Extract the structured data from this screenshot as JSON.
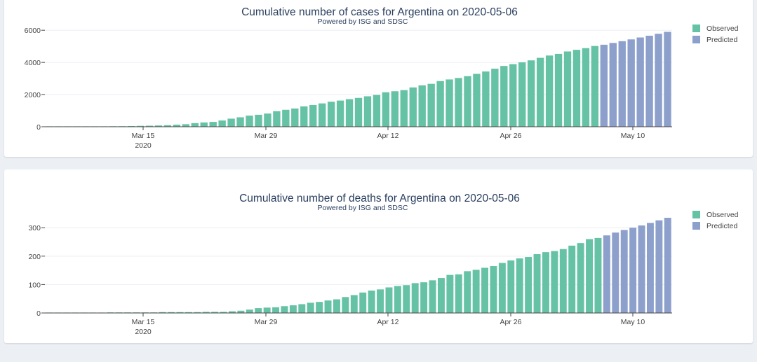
{
  "colors": {
    "observed": "#66c2a5",
    "predicted": "#8da0cb",
    "grid": "#ebeef2",
    "axis": "#444444"
  },
  "chart_data": [
    {
      "type": "bar",
      "title": "Cumulative number of cases for Argentina on 2020-05-06",
      "subtitle": "Powered by ISG and SDSC",
      "x_ticks": [
        "Mar 15",
        "Mar 29",
        "Apr 12",
        "Apr 26",
        "May 10"
      ],
      "x_tick_year": "2020",
      "y_ticks": [
        "0",
        "2000",
        "4000",
        "6000"
      ],
      "ylim": [
        0,
        6400
      ],
      "legend": [
        "Observed",
        "Predicted"
      ],
      "legend_position": "top-right",
      "series": [
        {
          "name": "Observed",
          "values": [
            1,
            2,
            8,
            12,
            17,
            19,
            21,
            31,
            34,
            45,
            56,
            65,
            79,
            97,
            128,
            158,
            225,
            266,
            301,
            387,
            502,
            589,
            690,
            745,
            820,
            966,
            1054,
            1133,
            1265,
            1353,
            1451,
            1554,
            1628,
            1715,
            1795,
            1894,
            1975,
            2142,
            2208,
            2277,
            2443,
            2571,
            2669,
            2839,
            2941,
            3031,
            3144,
            3288,
            3435,
            3607,
            3780,
            3892,
            4003,
            4127,
            4285,
            4428,
            4532,
            4681,
            4783,
            4887,
            5020
          ]
        },
        {
          "name": "Predicted",
          "values": [
            5100,
            5210,
            5320,
            5430,
            5550,
            5660,
            5780,
            5900
          ]
        }
      ]
    },
    {
      "type": "bar",
      "title": "Cumulative number of deaths for Argentina on 2020-05-06",
      "subtitle": "Powered by ISG and SDSC",
      "x_ticks": [
        "Mar 15",
        "Mar 29",
        "Apr 12",
        "Apr 26",
        "May 10"
      ],
      "x_tick_year": "2020",
      "y_ticks": [
        "0",
        "100",
        "200",
        "300"
      ],
      "ylim": [
        0,
        340
      ],
      "legend": [
        "Observed",
        "Predicted"
      ],
      "legend_position": "top-right",
      "series": [
        {
          "name": "Observed",
          "values": [
            0,
            1,
            1,
            1,
            1,
            1,
            1,
            2,
            2,
            2,
            2,
            2,
            2,
            3,
            3,
            3,
            3,
            3,
            4,
            4,
            4,
            6,
            8,
            12,
            17,
            19,
            20,
            24,
            27,
            31,
            36,
            39,
            44,
            48,
            56,
            63,
            72,
            79,
            83,
            90,
            95,
            98,
            105,
            108,
            115,
            123,
            134,
            136,
            147,
            152,
            159,
            165,
            176,
            185,
            192,
            197,
            207,
            214,
            218,
            225,
            237,
            246,
            260,
            264
          ]
        },
        {
          "name": "Predicted",
          "values": [
            273,
            283,
            292,
            300,
            308,
            317,
            326,
            335
          ]
        }
      ]
    }
  ]
}
